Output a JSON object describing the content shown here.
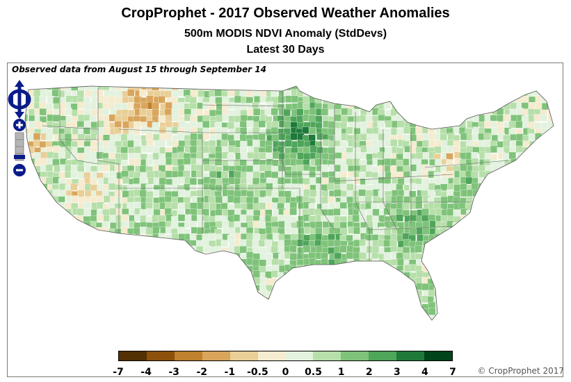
{
  "title": "CropProphet - 2017 Observed Weather Anomalies",
  "subtitle": "500m MODIS NDVI Anomaly (StdDevs)",
  "period": "Latest 30 Days",
  "observed_note": "Observed data from August 15 through September 14",
  "copyright": "© CropProphet 2017",
  "map_controls": {
    "pan": "pan-control",
    "zoom_in": "+",
    "zoom_out": "−"
  },
  "legend": {
    "labels": [
      "-7",
      "-4",
      "-3",
      "-2",
      "-1",
      "-0.5",
      "0",
      "0.5",
      "1",
      "2",
      "3",
      "4",
      "7"
    ],
    "colors": [
      "#543005",
      "#8c510a",
      "#bf812d",
      "#d9a55b",
      "#e9cf97",
      "#f5ebcf",
      "#e2f2de",
      "#b6dfa9",
      "#7fc37a",
      "#4fa55a",
      "#1f7a3a",
      "#00441b"
    ]
  }
}
